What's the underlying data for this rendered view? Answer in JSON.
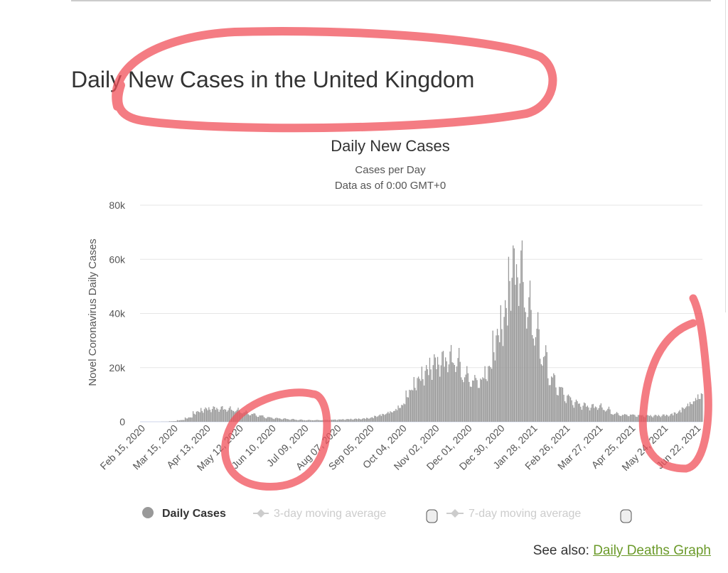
{
  "page_title": "Daily New Cases in the United Kingdom",
  "see_also": {
    "label": "See also:",
    "link": "Daily Deaths Graph"
  },
  "colors": {
    "bar": "#999999",
    "grid": "#e6e6e6",
    "annotation": "#f0505a",
    "link": "#6b9a2a"
  },
  "chart_data": {
    "type": "bar",
    "title": "Daily New Cases",
    "subtitle": "Cases per Day",
    "subtitle2": "Data as of 0:00 GMT+0",
    "ylabel": "Novel Coronavirus Daily Cases",
    "xlabel": "",
    "ylim": [
      0,
      80000
    ],
    "yticks": [
      {
        "v": 0,
        "label": "0"
      },
      {
        "v": 20000,
        "label": "20k"
      },
      {
        "v": 40000,
        "label": "40k"
      },
      {
        "v": 60000,
        "label": "60k"
      },
      {
        "v": 80000,
        "label": "80k"
      }
    ],
    "xticks": [
      "Feb 15, 2020",
      "Mar 15, 2020",
      "Apr 13, 2020",
      "May 12, 2020",
      "Jun 10, 2020",
      "Jul 09, 2020",
      "Aug 07, 2020",
      "Sep 05, 2020",
      "Oct 04, 2020",
      "Nov 02, 2020",
      "Dec 01, 2020",
      "Dec 30, 2020",
      "Jan 28, 2021",
      "Feb 26, 2021",
      "Mar 27, 2021",
      "Apr 25, 2021",
      "May 24, 2021",
      "Jun 22, 2021"
    ],
    "xtick_interval_days": 29,
    "grid": true,
    "series_start": "Feb 15, 2020",
    "weekly_avg_thousands": [
      0,
      0,
      0.05,
      0.2,
      0.6,
      1.5,
      3.5,
      4.5,
      4.8,
      4.8,
      4.6,
      4.2,
      3.5,
      2.8,
      2.2,
      1.6,
      1.3,
      1.1,
      0.9,
      0.7,
      0.6,
      0.6,
      0.6,
      0.7,
      0.8,
      0.9,
      1.0,
      1.1,
      1.4,
      2.2,
      3.0,
      4.0,
      6,
      11,
      15,
      18,
      21,
      22,
      23,
      22,
      17,
      15,
      15,
      19,
      30,
      38,
      55,
      55,
      42,
      33,
      24,
      16,
      12,
      9,
      7,
      6,
      5.5,
      5.5,
      4.5,
      3,
      2.5,
      2.5,
      2.3,
      2.2,
      2.2,
      2.3,
      2.5,
      3.5,
      5.5,
      7.5,
      10,
      13
    ],
    "weekday_pattern": [
      1.05,
      0.9,
      0.8,
      1.0,
      1.1,
      1.15,
      1.0
    ],
    "legend": [
      {
        "label": "Daily Cases",
        "active": true
      },
      {
        "label": "3-day moving average",
        "active": false
      },
      {
        "label": "7-day moving average",
        "active": false
      }
    ],
    "legend_placement": "bottom"
  }
}
